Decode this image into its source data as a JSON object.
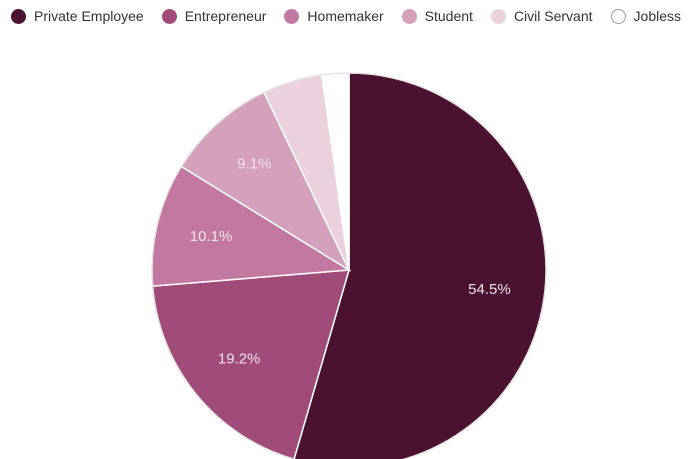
{
  "chart_data": {
    "type": "pie",
    "legend_position": "top",
    "slices": [
      {
        "name": "Private Employee",
        "value": 54.5,
        "label": "54.5%",
        "color": "#4b1130"
      },
      {
        "name": "Entrepreneur",
        "value": 19.2,
        "label": "19.2%",
        "color": "#a04b7a"
      },
      {
        "name": "Homemaker",
        "value": 10.1,
        "label": "10.1%",
        "color": "#c278a1"
      },
      {
        "name": "Student",
        "value": 9.1,
        "label": "9.1%",
        "color": "#d4a1bd"
      },
      {
        "name": "Civil Servant",
        "value": 4.9,
        "label": "",
        "color": "#ebd0dd"
      },
      {
        "name": "Jobless",
        "value": 2.2,
        "label": "",
        "color": "#ffffff"
      }
    ]
  }
}
